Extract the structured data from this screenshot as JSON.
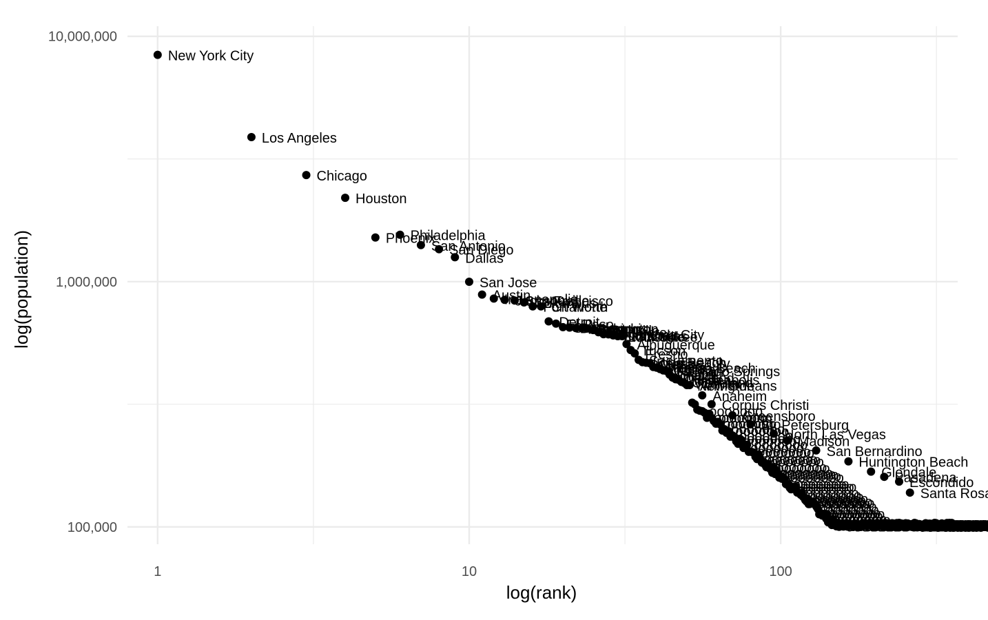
{
  "chart_data": {
    "type": "scatter",
    "title": "",
    "xlabel": "log(rank)",
    "ylabel": "log(population)",
    "x_scale": "log10",
    "y_scale": "log10",
    "xlim": [
      0.8,
      370
    ],
    "ylim": [
      85000,
      11000000
    ],
    "x_ticks": [
      1,
      10,
      100
    ],
    "x_tick_labels": [
      "1",
      "10",
      "100"
    ],
    "y_ticks": [
      100000,
      1000000,
      10000000
    ],
    "y_tick_labels": [
      "100,000",
      "1,000,000",
      "10,000,000"
    ],
    "grid": true,
    "point_color": "#000000",
    "labeled_points": [
      {
        "rank": 1,
        "population": 8405837,
        "label": "New York City"
      },
      {
        "rank": 2,
        "population": 3884307,
        "label": "Los Angeles"
      },
      {
        "rank": 3,
        "population": 2718782,
        "label": "Chicago"
      },
      {
        "rank": 4,
        "population": 2195914,
        "label": "Houston"
      },
      {
        "rank": 5,
        "population": 1513367,
        "label": "Phoenix"
      },
      {
        "rank": 6,
        "population": 1553165,
        "label": "Philadelphia"
      },
      {
        "rank": 7,
        "population": 1409019,
        "label": "San Antonio"
      },
      {
        "rank": 8,
        "population": 1355896,
        "label": "San Diego"
      },
      {
        "rank": 9,
        "population": 1257676,
        "label": "Dallas"
      },
      {
        "rank": 10,
        "population": 998537,
        "label": "San Jose"
      },
      {
        "rank": 11,
        "population": 885400,
        "label": "Austin"
      },
      {
        "rank": 12,
        "population": 853382,
        "label": "Indianapolis"
      },
      {
        "rank": 13,
        "population": 842583,
        "label": "Jacksonville"
      },
      {
        "rank": 14,
        "population": 837442,
        "label": "San Francisco"
      },
      {
        "rank": 15,
        "population": 822553,
        "label": "Columbus"
      },
      {
        "rank": 16,
        "population": 792727,
        "label": "Fort Worth"
      },
      {
        "rank": 17,
        "population": 792727,
        "label": "Charlotte"
      },
      {
        "rank": 18,
        "population": 688701,
        "label": "Detroit"
      },
      {
        "rank": 19,
        "population": 674158,
        "label": "El Paso"
      },
      {
        "rank": 20,
        "population": 652405,
        "label": "Seattle"
      },
      {
        "rank": 21,
        "population": 649495,
        "label": "Denver"
      },
      {
        "rank": 22,
        "population": 646449,
        "label": "Washington"
      },
      {
        "rank": 23,
        "population": 645966,
        "label": "Memphis"
      },
      {
        "rank": 24,
        "population": 644594,
        "label": "Boston"
      },
      {
        "rank": 25,
        "population": 634464,
        "label": "Nashville"
      },
      {
        "rank": 26,
        "population": 622104,
        "label": "Baltimore"
      },
      {
        "rank": 27,
        "population": 610613,
        "label": "Oklahoma City"
      },
      {
        "rank": 28,
        "population": 609456,
        "label": "Portland"
      },
      {
        "rank": 29,
        "population": 603488,
        "label": "Las Vegas"
      },
      {
        "rank": 30,
        "population": 599164,
        "label": "Louisville"
      },
      {
        "rank": 31,
        "population": 599164,
        "label": "Milwaukee"
      },
      {
        "rank": 32,
        "population": 556495,
        "label": "Albuquerque"
      },
      {
        "rank": 33,
        "population": 526116,
        "label": "Tucson"
      },
      {
        "rank": 34,
        "population": 509924,
        "label": "Fresno"
      },
      {
        "rank": 35,
        "population": 479686,
        "label": "Sacramento"
      },
      {
        "rank": 36,
        "population": 469428,
        "label": "Long Beach"
      },
      {
        "rank": 37,
        "population": 467007,
        "label": "Kansas City"
      },
      {
        "rank": 38,
        "population": 464704,
        "label": "Mesa"
      },
      {
        "rank": 39,
        "population": 448696,
        "label": "Atlanta"
      },
      {
        "rank": 40,
        "population": 445830,
        "label": "Virginia Beach"
      },
      {
        "rank": 41,
        "population": 439896,
        "label": "Omaha"
      },
      {
        "rank": 42,
        "population": 434353,
        "label": "Colorado Springs"
      },
      {
        "rank": 43,
        "population": 431746,
        "label": "Raleigh"
      },
      {
        "rank": 44,
        "population": 417650,
        "label": "Miami"
      },
      {
        "rank": 45,
        "population": 406230,
        "label": "Oakland"
      },
      {
        "rank": 46,
        "population": 400070,
        "label": "Minneapolis"
      },
      {
        "rank": 47,
        "population": 398121,
        "label": "Tulsa"
      },
      {
        "rank": 48,
        "population": 390113,
        "label": "Cleveland"
      },
      {
        "rank": 49,
        "population": 386552,
        "label": "Wichita"
      },
      {
        "rank": 50,
        "population": 378715,
        "label": "New Orleans"
      },
      {
        "rank": 51,
        "population": 378715,
        "label": "Arlington"
      },
      {
        "rank": 56,
        "population": 343890,
        "label": "Anaheim"
      },
      {
        "rank": 60,
        "population": 316381,
        "label": "Corpus Christi"
      },
      {
        "rank": 70,
        "population": 285000,
        "label": "Greensboro"
      },
      {
        "rank": 80,
        "population": 262000,
        "label": "St. Petersburg"
      },
      {
        "rank": 95,
        "population": 240000,
        "label": "North Las Vegas"
      },
      {
        "rank": 105,
        "population": 225000,
        "label": "Madison"
      },
      {
        "rank": 130,
        "population": 205000,
        "label": "San Bernardino"
      },
      {
        "rank": 165,
        "population": 185000,
        "label": "Huntington Beach"
      },
      {
        "rank": 195,
        "population": 168000,
        "label": "Glendale"
      },
      {
        "rank": 215,
        "population": 160000,
        "label": "Pasadena"
      },
      {
        "rank": 240,
        "population": 153000,
        "label": "Escondido"
      },
      {
        "rank": 260,
        "population": 138000,
        "label": "Santa Rosa"
      }
    ],
    "trend_note": ""
  }
}
